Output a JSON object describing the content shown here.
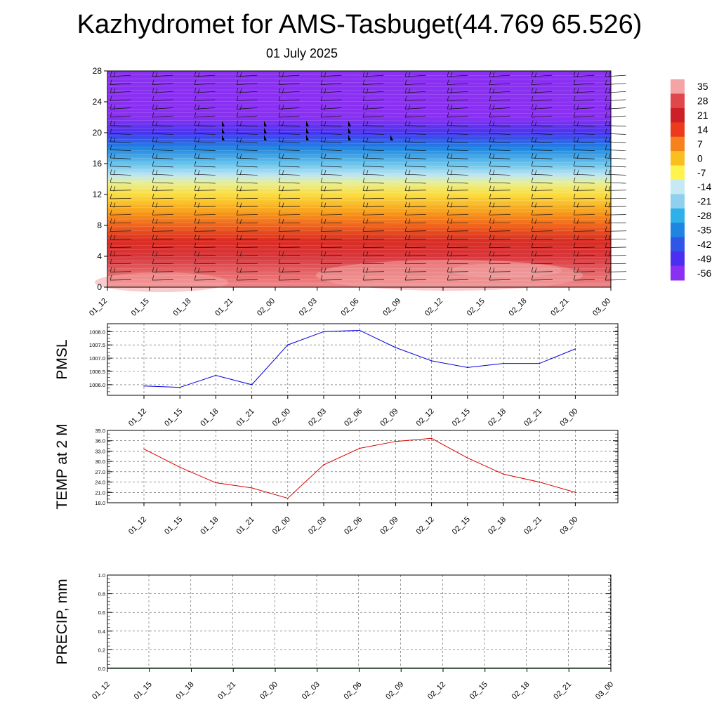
{
  "title": "Kazhydromet for AMS-Tasbuget(44.769 65.526)",
  "subtitle": "01 July 2025",
  "time_labels": [
    "01_12",
    "01_15",
    "01_18",
    "01_21",
    "02_00",
    "02_03",
    "02_06",
    "02_09",
    "02_12",
    "02_15",
    "02_18",
    "02_21",
    "03_00"
  ],
  "colorbar": {
    "labels": [
      "35",
      "28",
      "21",
      "14",
      "7",
      "0",
      "-7",
      "-14",
      "-21",
      "-28",
      "-35",
      "-42",
      "-49",
      "-56"
    ],
    "colors": [
      "#f4a4a4",
      "#e0474b",
      "#cc1f26",
      "#ec3a1c",
      "#f5821b",
      "#f9bf1f",
      "#fff44e",
      "#c7e9f3",
      "#8fd0ee",
      "#2eb1ea",
      "#1e85e0",
      "#2f56e6",
      "#4b2ef0",
      "#8a30f2"
    ]
  },
  "chart_data": [
    {
      "type": "heatmap",
      "title": "",
      "ylabel": "",
      "ylim": [
        0,
        28
      ],
      "yticks": [
        0,
        4,
        8,
        12,
        16,
        20,
        24,
        28
      ],
      "x_categories": [
        "01_12",
        "01_15",
        "01_18",
        "01_21",
        "02_00",
        "02_03",
        "02_06",
        "02_09",
        "02_12",
        "02_15",
        "02_18",
        "02_21",
        "03_00"
      ],
      "value_range": [
        -56,
        35
      ],
      "temperature_profile": [
        {
          "height": 0,
          "value": 33
        },
        {
          "height": 2,
          "value": 30
        },
        {
          "height": 4,
          "value": 25
        },
        {
          "height": 6,
          "value": 18
        },
        {
          "height": 8,
          "value": 10
        },
        {
          "height": 10,
          "value": 3
        },
        {
          "height": 12,
          "value": -4
        },
        {
          "height": 13.5,
          "value": -10
        },
        {
          "height": 14.5,
          "value": -15
        },
        {
          "height": 16,
          "value": -24
        },
        {
          "height": 18,
          "value": -35
        },
        {
          "height": 20,
          "value": -48
        },
        {
          "height": 22,
          "value": -56
        },
        {
          "height": 28,
          "value": -58
        }
      ],
      "overlay": "wind barbs"
    },
    {
      "type": "line",
      "ylabel": "PMSL",
      "x": [
        "01_12",
        "01_15",
        "01_18",
        "01_21",
        "02_00",
        "02_03",
        "02_06",
        "02_09",
        "02_12",
        "02_15",
        "02_18",
        "02_21",
        "03_00"
      ],
      "y": [
        1005.95,
        1005.9,
        1006.35,
        1006.0,
        1007.5,
        1008.0,
        1008.05,
        1007.4,
        1006.9,
        1006.65,
        1006.8,
        1006.8,
        1007.35
      ],
      "ylim": [
        1005.6,
        1008.3
      ],
      "yticks": [
        1006.0,
        1006.5,
        1007.0,
        1007.5,
        1008.0
      ],
      "ytick_labels": [
        "1006.0",
        "1006.5",
        "1007.0",
        "1007.5",
        "1008.0"
      ],
      "color": "#0000dd",
      "grid": true
    },
    {
      "type": "line",
      "ylabel": "TEMP at 2 M",
      "x": [
        "01_12",
        "01_15",
        "01_18",
        "01_21",
        "02_00",
        "02_03",
        "02_06",
        "02_09",
        "02_12",
        "02_15",
        "02_18",
        "02_21",
        "03_00"
      ],
      "y": [
        33.6,
        28.3,
        23.8,
        22.3,
        19.3,
        29.0,
        33.8,
        35.8,
        36.7,
        31.0,
        26.3,
        24.0,
        21.0
      ],
      "ylim": [
        18,
        39
      ],
      "yticks": [
        18,
        21,
        24,
        27,
        30,
        33,
        36,
        39
      ],
      "ytick_labels": [
        "18.0",
        "21.0",
        "24.0",
        "27.0",
        "30.0",
        "33.0",
        "36.0",
        "39.0"
      ],
      "color": "#dd0000",
      "grid": true
    },
    {
      "type": "line",
      "ylabel": "PRECIP, mm",
      "x": [
        "01_12",
        "01_15",
        "01_18",
        "01_21",
        "02_00",
        "02_03",
        "02_06",
        "02_09",
        "02_12",
        "02_15",
        "02_18",
        "02_21",
        "03_00"
      ],
      "y": [
        0,
        0,
        0,
        0,
        0,
        0,
        0,
        0,
        0,
        0,
        0,
        0,
        0
      ],
      "ylim": [
        0,
        1
      ],
      "yticks": [
        0,
        0.2,
        0.4,
        0.6,
        0.8,
        1.0
      ],
      "ytick_labels": [
        "0.0",
        "0.2",
        "0.4",
        "0.6",
        "0.8",
        "1.0"
      ],
      "color": "#006400",
      "grid": true
    }
  ]
}
